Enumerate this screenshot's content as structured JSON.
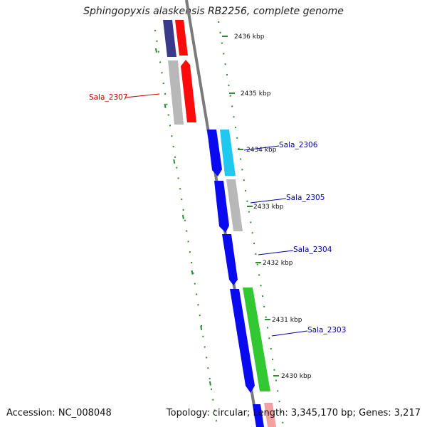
{
  "title": "Sphingopyxis alaskensis RB2256, complete genome",
  "footer": {
    "accession": "Accession: NC_008048",
    "stats": "Topology: circular; Length: 3,345,170 bp; Genes: 3,217"
  },
  "colors": {
    "backbone": "#7a7a7a",
    "tick": "#2e8b2e",
    "label_reverse": "#cc0000",
    "label_forward": "#0000aa",
    "cds_blue": "#0a0af0",
    "cds_cyan": "#20c8f0",
    "cds_green": "#32c832",
    "cds_gray": "#b8b8b8",
    "cds_red": "#ff0a0a",
    "cds_navy": "#3a3a8a"
  },
  "kbp_labels": [
    "2436 kbp",
    "2435 kbp",
    "2434 kbp",
    "2433 kbp",
    "2432 kbp",
    "2431 kbp",
    "2430 kbp"
  ],
  "genes": [
    {
      "id": "Sala_2307",
      "strand": "reverse"
    },
    {
      "id": "Sala_2306",
      "strand": "forward"
    },
    {
      "id": "Sala_2305",
      "strand": "forward"
    },
    {
      "id": "Sala_2304",
      "strand": "forward"
    },
    {
      "id": "Sala_2303",
      "strand": "forward"
    }
  ]
}
